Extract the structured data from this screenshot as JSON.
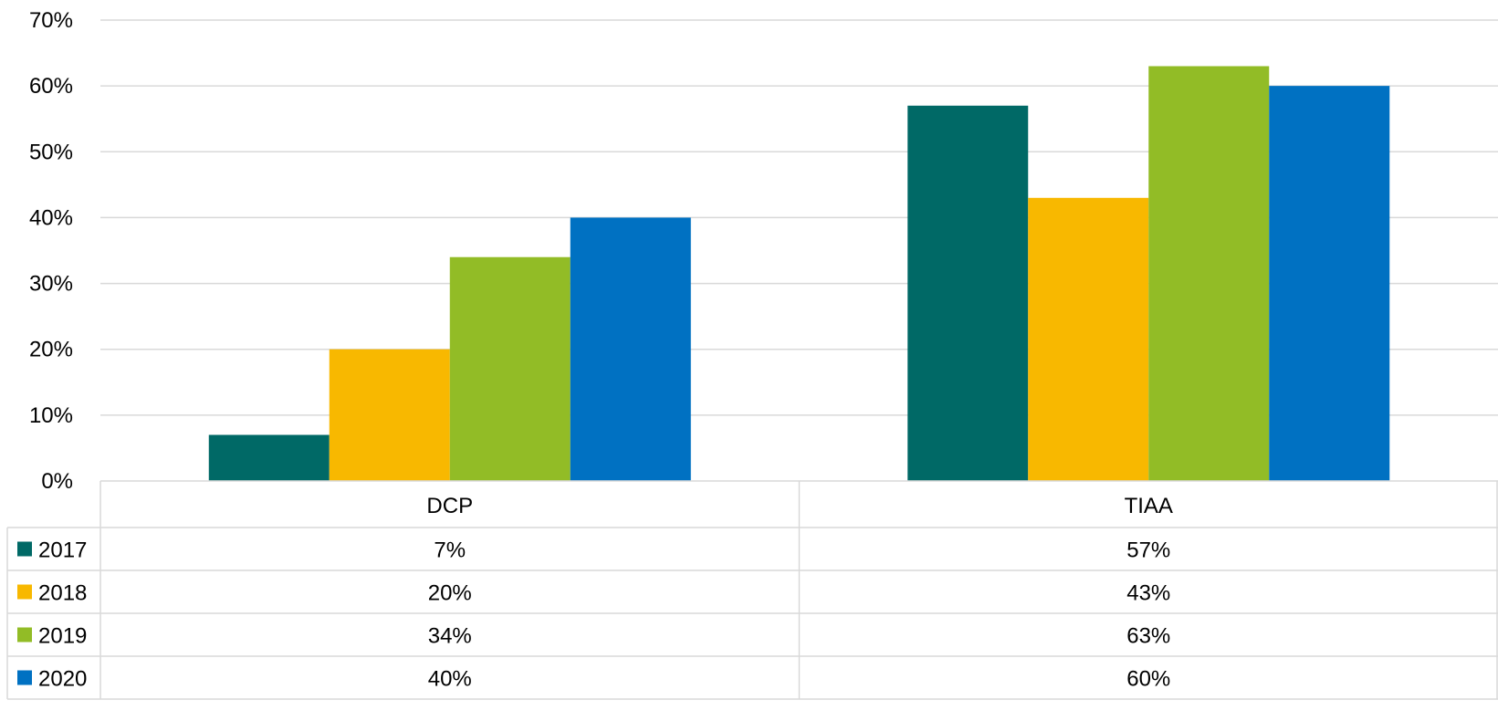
{
  "chart_data": {
    "type": "bar",
    "title": "",
    "xlabel": "",
    "ylabel": "",
    "ylim": [
      0,
      70
    ],
    "yticks": [
      "0%",
      "10%",
      "20%",
      "30%",
      "40%",
      "50%",
      "60%",
      "70%"
    ],
    "grid": true,
    "legend": "data-table",
    "categories": [
      "DCP",
      "TIAA"
    ],
    "series": [
      {
        "name": "2017",
        "color": "#006966",
        "values": [
          7,
          57
        ],
        "labels": [
          "7%",
          "57%"
        ]
      },
      {
        "name": "2018",
        "color": "#F8B800",
        "values": [
          20,
          43
        ],
        "labels": [
          "20%",
          "43%"
        ]
      },
      {
        "name": "2019",
        "color": "#92BC26",
        "values": [
          34,
          63
        ],
        "labels": [
          "34%",
          "63%"
        ]
      },
      {
        "name": "2020",
        "color": "#0071C2",
        "values": [
          40,
          60
        ],
        "labels": [
          "40%",
          "60%"
        ]
      }
    ]
  }
}
